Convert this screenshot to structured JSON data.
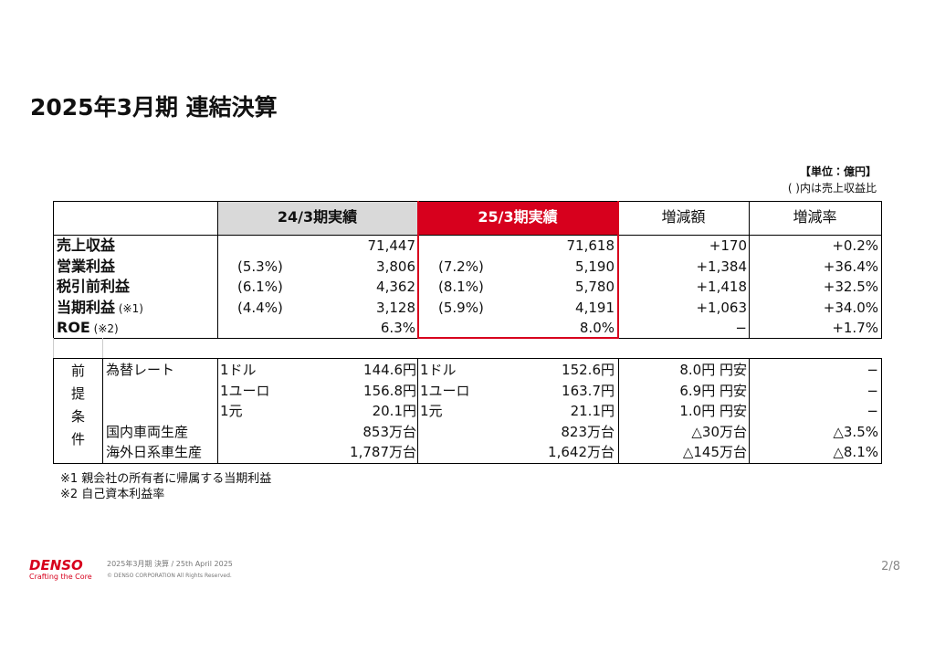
{
  "title": "2025年3月期 連結決算",
  "unit": "【単位：億円】",
  "unit_note": "( )内は売上収益比",
  "results": {
    "headers": [
      "24/3期実績",
      "25/3期実績",
      "増減額",
      "増減率"
    ],
    "rows": [
      {
        "label": "売上収益",
        "prev": "71,447",
        "cur": "71,618",
        "diff": "+170",
        "rate": "+0.2%"
      },
      {
        "label": "営業利益",
        "prev_ratio": "(5.3%)",
        "prev": "3,806",
        "cur_ratio": "(7.2%)",
        "cur": "5,190",
        "diff": "+1,384",
        "rate": "+36.4%"
      },
      {
        "label": "税引前利益",
        "prev_ratio": "(6.1%)",
        "prev": "4,362",
        "cur_ratio": "(8.1%)",
        "cur": "5,780",
        "diff": "+1,418",
        "rate": "+32.5%"
      },
      {
        "label": "当期利益",
        "note": "(※1)",
        "prev_ratio": "(4.4%)",
        "prev": "3,128",
        "cur_ratio": "(5.9%)",
        "cur": "4,191",
        "diff": "+1,063",
        "rate": "+34.0%"
      },
      {
        "label": "ROE",
        "note": "(※2)",
        "prev": "6.3%",
        "cur": "8.0%",
        "diff": "−",
        "rate": "+1.7%"
      }
    ]
  },
  "assumptions": {
    "group": "前提条件",
    "rows": [
      {
        "label": "為替レート",
        "prev_unit": "1ドル",
        "prev": "144.6円",
        "cur_unit": "1ドル",
        "cur": "152.6円",
        "diff": "8.0円 円安",
        "rate": "−"
      },
      {
        "prev_unit": "1ユーロ",
        "prev": "156.8円",
        "cur_unit": "1ユーロ",
        "cur": "163.7円",
        "diff": "6.9円 円安",
        "rate": "−"
      },
      {
        "prev_unit": "1元",
        "prev": "20.1円",
        "cur_unit": "1元",
        "cur": "21.1円",
        "diff": "1.0円 円安",
        "rate": "−"
      },
      {
        "label": "国内車両生産",
        "prev": "853万台",
        "cur": "823万台",
        "diff": "△30万台",
        "rate": "△3.5%"
      },
      {
        "label": "海外日系車生産",
        "prev": "1,787万台",
        "cur": "1,642万台",
        "diff": "△145万台",
        "rate": "△8.1%"
      }
    ]
  },
  "footnotes": [
    "※1 親会社の所有者に帰属する当期利益",
    "※2 自己資本利益率"
  ],
  "footer": {
    "brand": "DENSO",
    "tagline": "Crafting the Core",
    "info": "2025年3月期 決算 / 25th April 2025",
    "copyright": "© DENSO CORPORATION All Rights Reserved.",
    "page": "2/8"
  }
}
